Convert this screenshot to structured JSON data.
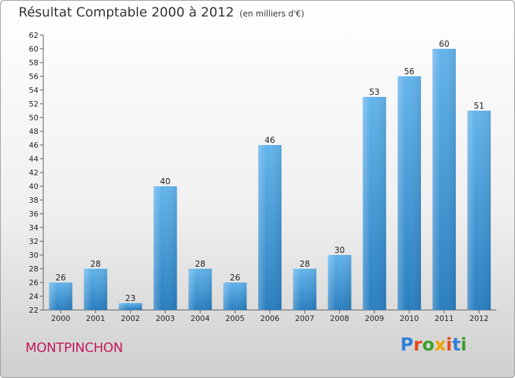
{
  "header": {
    "title": "Résultat Comptable 2000 à 2012",
    "unit": "(en milliers d'€)"
  },
  "footer": {
    "place": "MONTPINCHON",
    "logo": "Proxiti"
  },
  "colors": {
    "bar_light": "#64b4ec",
    "bar_dark": "#2a7fc0",
    "place": "#c2185b",
    "logo": [
      "#2f7fd6",
      "#e64b19",
      "#3a9f2d",
      "#f0a400",
      "#e64b19",
      "#2f7fd6",
      "#3a9f2d"
    ]
  },
  "chart_data": {
    "type": "bar",
    "categories": [
      "2000",
      "2001",
      "2002",
      "2003",
      "2004",
      "2005",
      "2006",
      "2007",
      "2008",
      "2009",
      "2010",
      "2011",
      "2012"
    ],
    "values": [
      26,
      28,
      23,
      40,
      28,
      26,
      46,
      28,
      30,
      53,
      56,
      60,
      51
    ],
    "ylim": [
      22,
      62
    ],
    "ytick_step": 2,
    "grid": false,
    "data_labels": true
  }
}
